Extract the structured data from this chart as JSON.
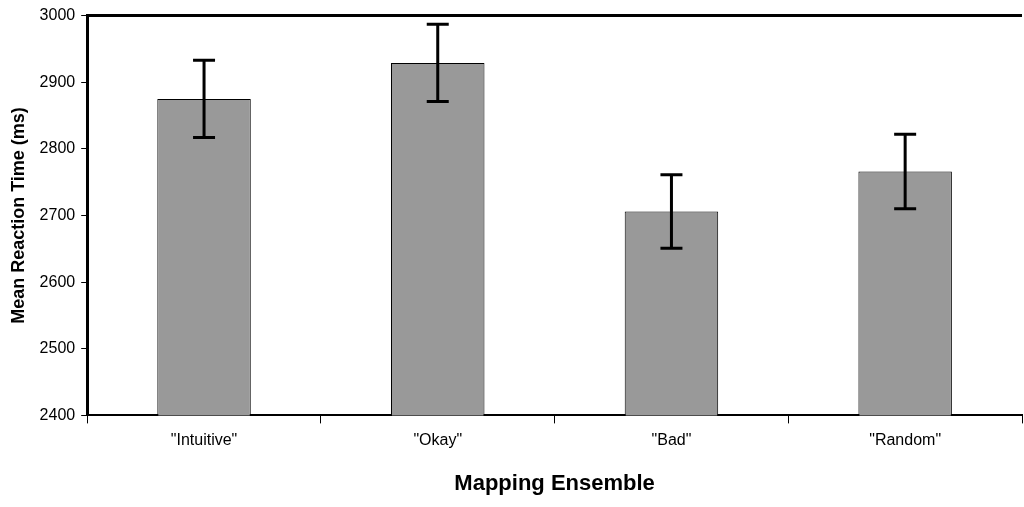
{
  "chart_data": {
    "type": "bar",
    "xlabel": "Mapping Ensemble",
    "ylabel": "Mean Reaction Time (ms)",
    "categories": [
      "\"Intuitive\"",
      "\"Okay\"",
      "\"Bad\"",
      "\"Random\""
    ],
    "values": [
      2875,
      2929,
      2706,
      2766
    ],
    "errors": [
      58,
      58,
      55,
      56
    ],
    "color": "#999999",
    "ylim": [
      2400,
      3000
    ],
    "yticks": [
      2400,
      2500,
      2600,
      2700,
      2800,
      2900,
      3000
    ],
    "grid": false,
    "legend": false
  }
}
